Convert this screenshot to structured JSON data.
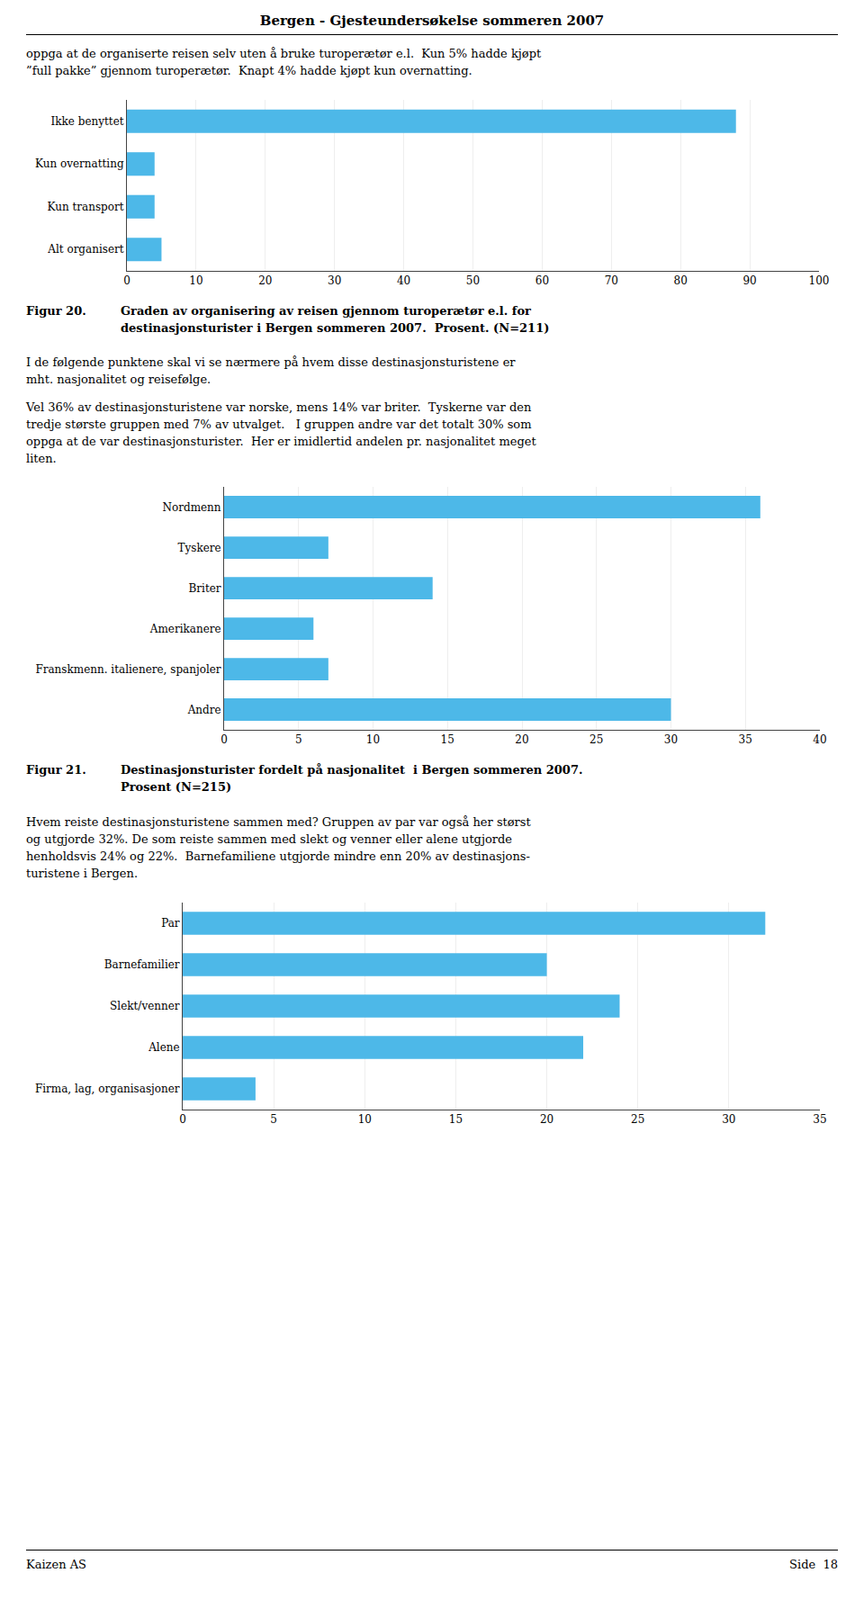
{
  "page_title": "Bergen - Gjesteundersøkelse sommeren 2007",
  "chart_data": [
    {
      "type": "bar",
      "orientation": "horizontal",
      "text_before": [
        "oppga at de organiserte reisen selv uten å bruke turoperætør e.l.  Kun 5% hadde kjøpt\n”full pakke” gjennom turoperætør.  Knapt 4% hadde kjøpt kun overnatting."
      ],
      "categories": [
        "Ikke benyttet",
        "Kun overnatting",
        "Kun transport",
        "Alt organisert"
      ],
      "values": [
        88,
        4,
        4,
        5
      ],
      "color": "#4db8e8",
      "xlim": [
        0,
        100
      ],
      "xticks": [
        0,
        10,
        20,
        30,
        40,
        50,
        60,
        70,
        80,
        90,
        100
      ],
      "grid": true,
      "caption_label": "Figur 20.",
      "caption": "Graden av organisering av reisen gjennom turoperætør e.l. for\ndestinasjonsturister i Bergen sommeren 2007.  Prosent. (N=211)"
    },
    {
      "type": "bar",
      "orientation": "horizontal",
      "text_before": [
        "I de følgende punktene skal vi se nærmere på hvem disse destinasjonsturistene er\nmht. nasjonalitet og reisefølge.",
        "Vel 36% av destinasjonsturistene var norske, mens 14% var briter.  Tyskerne var den\ntredje største gruppen med 7% av utvalget.   I gruppen andre var det totalt 30% som\noppga at de var destinasjonsturister.  Her er imidlertid andelen pr. nasjonalitet meget\nliten."
      ],
      "categories": [
        "Nordmenn",
        "Tyskere",
        "Briter",
        "Amerikanere",
        "Franskmenn. italienere, spanjoler",
        "Andre"
      ],
      "values": [
        36,
        7,
        14,
        6,
        7,
        30
      ],
      "color": "#4db8e8",
      "xlim": [
        0,
        40
      ],
      "xticks": [
        0,
        5,
        10,
        15,
        20,
        25,
        30,
        35,
        40
      ],
      "grid": true,
      "caption_label": "Figur 21.",
      "caption": "Destinasjonsturister fordelt på nasjonalitet  i Bergen sommeren 2007.\nProsent (N=215)"
    },
    {
      "type": "bar",
      "orientation": "horizontal",
      "text_before": [
        "Hvem reiste destinasjonsturistene sammen med? Gruppen av par var også her størst\nog utgjorde 32%. De som reiste sammen med slekt og venner eller alene utgjorde\nhenholdsvis 24% og 22%.  Barnefamiliene utgjorde mindre enn 20% av destinasjons-\nturistene i Bergen."
      ],
      "categories": [
        "Par",
        "Barnefamilier",
        "Slekt/venner",
        "Alene",
        "Firma, lag, organisasjoner"
      ],
      "values": [
        32,
        20,
        24,
        22,
        4
      ],
      "color": "#4db8e8",
      "xlim": [
        0,
        35
      ],
      "xticks": [
        0,
        5,
        10,
        15,
        20,
        25,
        30,
        35
      ],
      "grid": true
    }
  ],
  "footer": [
    "Kaizen AS",
    "Side  18"
  ]
}
